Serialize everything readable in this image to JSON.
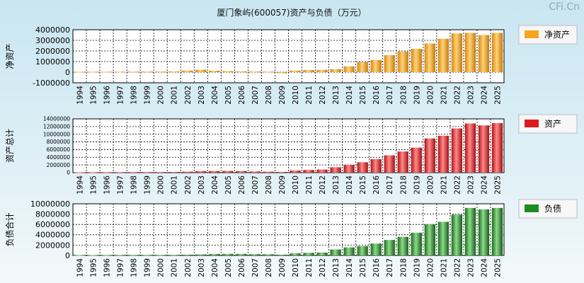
{
  "title": "厦门象屿(600057)资产与负债（万元）",
  "brand": "CFi.Cn",
  "colors": {
    "equity": "#f5a51f",
    "assets": "#e0191f",
    "liabilities": "#1f8a1f",
    "gridline": "#000000",
    "background": "#cfe8f2"
  },
  "chart_data": [
    {
      "type": "bar",
      "panel": "equity",
      "ylabel": "净资产",
      "legend": "净资产",
      "legend_placement": "right",
      "grid": true,
      "categories": [
        "1994",
        "1995",
        "1996",
        "1997",
        "1998",
        "1999",
        "2000",
        "2001",
        "2002",
        "2003",
        "2004",
        "2005",
        "2006",
        "2007",
        "2008",
        "2009",
        "2010",
        "2011",
        "2012",
        "2013",
        "2014",
        "2015",
        "2016",
        "2017",
        "2018",
        "2019",
        "2020",
        "2021",
        "2022",
        "2023",
        "2024",
        "2025"
      ],
      "values": [
        30000,
        40000,
        40000,
        45000,
        50000,
        55000,
        60000,
        70000,
        150000,
        230000,
        140000,
        100000,
        80000,
        60000,
        50000,
        -100000,
        150000,
        200000,
        220000,
        280000,
        550000,
        950000,
        1150000,
        1600000,
        1950000,
        2200000,
        2700000,
        3150000,
        3650000,
        3700000,
        3500000,
        3700000
      ],
      "ylim": [
        -1000000,
        4000000
      ],
      "yticks": [
        "4000000",
        "3000000",
        "2000000",
        "1000000",
        "0",
        "-1000000"
      ],
      "ytick_values": [
        4000000,
        3000000,
        2000000,
        1000000,
        0,
        -1000000
      ]
    },
    {
      "type": "bar",
      "panel": "assets",
      "ylabel": "资产总计",
      "legend": "资产",
      "legend_placement": "right",
      "grid": true,
      "categories": [
        "1994",
        "1995",
        "1996",
        "1997",
        "1998",
        "1999",
        "2000",
        "2001",
        "2002",
        "2003",
        "2004",
        "2005",
        "2006",
        "2007",
        "2008",
        "2009",
        "2010",
        "2011",
        "2012",
        "2013",
        "2014",
        "2015",
        "2016",
        "2017",
        "2018",
        "2019",
        "2020",
        "2021",
        "2022",
        "2023",
        "2024",
        "2025"
      ],
      "values": [
        100000,
        120000,
        130000,
        140000,
        150000,
        150000,
        160000,
        180000,
        250000,
        400000,
        420000,
        450000,
        400000,
        300000,
        250000,
        200000,
        550000,
        700000,
        800000,
        1400000,
        2000000,
        2700000,
        3500000,
        4500000,
        5500000,
        6500000,
        8900000,
        9600000,
        11500000,
        12800000,
        12300000,
        12900000
      ],
      "ylim": [
        0,
        14000000
      ],
      "yticks": [
        "14000000",
        "12000000",
        "10000000",
        "8000000",
        "6000000",
        "4000000",
        "2000000",
        "0"
      ],
      "ytick_values": [
        14000000,
        12000000,
        10000000,
        8000000,
        6000000,
        4000000,
        2000000,
        0
      ]
    },
    {
      "type": "bar",
      "panel": "liabilities",
      "ylabel": "负债合计",
      "legend": "负债",
      "legend_placement": "right",
      "grid": true,
      "categories": [
        "1994",
        "1995",
        "1996",
        "1997",
        "1998",
        "1999",
        "2000",
        "2001",
        "2002",
        "2003",
        "2004",
        "2005",
        "2006",
        "2007",
        "2008",
        "2009",
        "2010",
        "2011",
        "2012",
        "2013",
        "2014",
        "2015",
        "2016",
        "2017",
        "2018",
        "2019",
        "2020",
        "2021",
        "2022",
        "2023",
        "2024",
        "2025"
      ],
      "values": [
        60000,
        80000,
        90000,
        100000,
        100000,
        100000,
        100000,
        110000,
        150000,
        200000,
        280000,
        300000,
        300000,
        250000,
        220000,
        150000,
        400000,
        500000,
        550000,
        1150000,
        1550000,
        1800000,
        2300000,
        3000000,
        3600000,
        4400000,
        6000000,
        6500000,
        7900000,
        9200000,
        8900000,
        9200000
      ],
      "ylim": [
        0,
        10000000
      ],
      "yticks": [
        "10000000",
        "8000000",
        "6000000",
        "4000000",
        "2000000",
        "0"
      ],
      "ytick_values": [
        10000000,
        8000000,
        6000000,
        4000000,
        2000000,
        0
      ]
    }
  ]
}
